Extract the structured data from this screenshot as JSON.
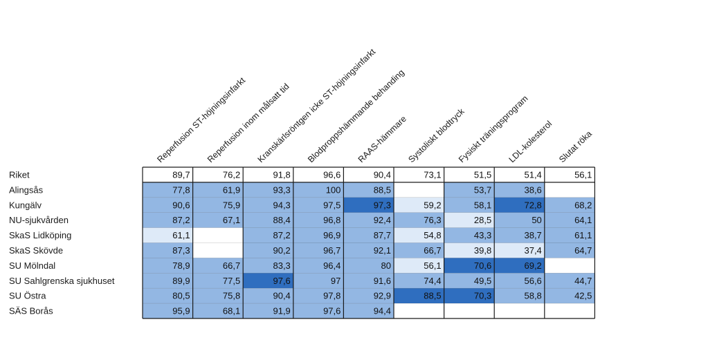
{
  "colors": {
    "strong": "#2f6ebf",
    "medium": "#93b7e3",
    "light": "#deeaf8",
    "blank": "#ffffff",
    "grid": "#1a1a1a"
  },
  "chart_data": {
    "type": "heatmap",
    "columns": [
      "Reperfusion ST-höjningsinfarkt",
      "Reperfusion inom målsatt tid",
      "Kranskärlsröntgen icke ST-höjningsinfarkt",
      "Blodproppshämmande behanding",
      "RAAS-hämmare",
      "Systoliskt blodtryck",
      "Fysiskt träningsprogram",
      "LDL-kolesterol",
      "Slutat röka"
    ],
    "rows": [
      {
        "label": "Riket",
        "values": [
          "89,7",
          "76,2",
          "91,8",
          "96,6",
          "90,4",
          "73,1",
          "51,5",
          "51,4",
          "56,1"
        ],
        "levels": [
          "blank",
          "blank",
          "blank",
          "blank",
          "blank",
          "blank",
          "blank",
          "blank",
          "blank"
        ]
      },
      {
        "label": "Alingsås",
        "values": [
          "77,8",
          "61,9",
          "93,3",
          "100",
          "88,5",
          "",
          "53,7",
          "38,6",
          ""
        ],
        "levels": [
          "medium",
          "medium",
          "medium",
          "medium",
          "medium",
          "blank",
          "medium",
          "medium",
          "blank"
        ]
      },
      {
        "label": "Kungälv",
        "values": [
          "90,6",
          "75,9",
          "94,3",
          "97,5",
          "97,3",
          "59,2",
          "58,1",
          "72,8",
          "68,2"
        ],
        "levels": [
          "medium",
          "medium",
          "medium",
          "medium",
          "strong",
          "light",
          "medium",
          "strong",
          "medium"
        ]
      },
      {
        "label": "NU-sjukvården",
        "values": [
          "87,2",
          "67,1",
          "88,4",
          "96,8",
          "92,4",
          "76,3",
          "28,5",
          "50",
          "64,1"
        ],
        "levels": [
          "medium",
          "medium",
          "medium",
          "medium",
          "medium",
          "medium",
          "light",
          "medium",
          "medium"
        ]
      },
      {
        "label": "SkaS Lidköping",
        "values": [
          "61,1",
          "",
          "87,2",
          "96,9",
          "87,7",
          "54,8",
          "43,3",
          "38,7",
          "61,1"
        ],
        "levels": [
          "light",
          "blank",
          "medium",
          "medium",
          "medium",
          "light",
          "medium",
          "medium",
          "medium"
        ]
      },
      {
        "label": "SkaS Skövde",
        "values": [
          "87,3",
          "",
          "90,2",
          "96,7",
          "92,1",
          "66,7",
          "39,8",
          "37,4",
          "64,7"
        ],
        "levels": [
          "medium",
          "blank",
          "medium",
          "medium",
          "medium",
          "medium",
          "light",
          "light",
          "medium"
        ]
      },
      {
        "label": "SU Mölndal",
        "values": [
          "78,9",
          "66,7",
          "83,3",
          "96,4",
          "80",
          "56,1",
          "70,6",
          "69,2",
          ""
        ],
        "levels": [
          "medium",
          "medium",
          "medium",
          "medium",
          "medium",
          "light",
          "strong",
          "strong",
          "blank"
        ]
      },
      {
        "label": "SU Sahlgrenska sjukhuset",
        "values": [
          "89,9",
          "77,5",
          "97,6",
          "97",
          "91,6",
          "74,4",
          "49,5",
          "56,6",
          "44,7"
        ],
        "levels": [
          "medium",
          "medium",
          "strong",
          "medium",
          "medium",
          "medium",
          "medium",
          "medium",
          "medium"
        ]
      },
      {
        "label": "SU Östra",
        "values": [
          "80,5",
          "75,8",
          "90,4",
          "97,8",
          "92,9",
          "88,5",
          "70,3",
          "58,8",
          "42,5"
        ],
        "levels": [
          "medium",
          "medium",
          "medium",
          "medium",
          "medium",
          "strong",
          "strong",
          "medium",
          "medium"
        ]
      },
      {
        "label": "SÄS Borås",
        "values": [
          "95,9",
          "68,1",
          "91,9",
          "97,6",
          "94,4",
          "",
          "",
          "",
          ""
        ],
        "levels": [
          "medium",
          "medium",
          "medium",
          "medium",
          "medium",
          "blank",
          "blank",
          "blank",
          "blank"
        ]
      }
    ]
  }
}
